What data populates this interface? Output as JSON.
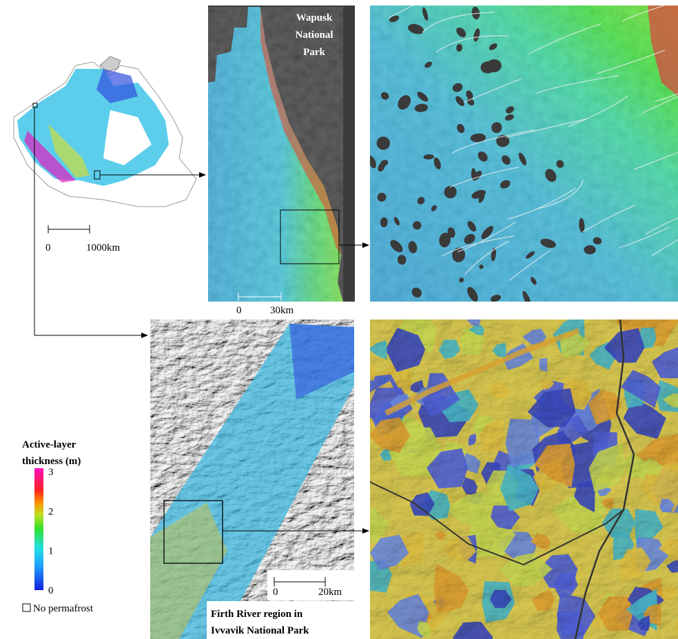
{
  "overview_map": {
    "scale_bar": {
      "start": "0",
      "end": "1000km"
    }
  },
  "wapusk_map": {
    "title_lines": [
      "Wapusk",
      "National",
      "Park"
    ],
    "scale_bar": {
      "start": "0",
      "end": "30km"
    }
  },
  "ivvavik_map": {
    "scale_bar": {
      "start": "0",
      "end": "20km"
    },
    "caption_lines": [
      "Firth River region in",
      "Ivvavik National Park"
    ]
  },
  "legend": {
    "title_lines": [
      "Active-layer",
      "thickness (m)"
    ],
    "ticks": [
      3,
      2,
      1,
      0
    ],
    "no_data_label": "No permafrost"
  }
}
